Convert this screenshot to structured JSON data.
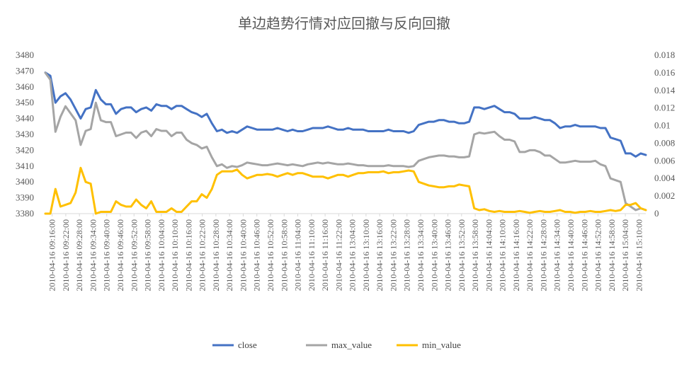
{
  "chart_data": {
    "type": "line",
    "title": "单边趋势行情对应回撤与反向回撤",
    "xlabel": "",
    "ylabel": "",
    "y_left": {
      "min": 3380,
      "max": 3480,
      "ticks": [
        "3380",
        "3390",
        "3400",
        "3410",
        "3420",
        "3430",
        "3440",
        "3450",
        "3460",
        "3470",
        "3480"
      ]
    },
    "y_right": {
      "min": 0,
      "max": 0.018,
      "ticks": [
        "0",
        "0.002",
        "0.004",
        "0.006",
        "0.008",
        "0.01",
        "0.012",
        "0.014",
        "0.016",
        "0.018"
      ]
    },
    "grid": false,
    "legend_position": "bottom",
    "x_tick_labels": [
      "2010-04-16 09:16:00",
      "2010-04-16 09:22:00",
      "2010-04-16 09:28:00",
      "2010-04-16 09:34:00",
      "2010-04-16 09:40:00",
      "2010-04-16 09:46:00",
      "2010-04-16 09:52:00",
      "2010-04-16 09:58:00",
      "2010-04-16 10:04:00",
      "2010-04-16 10:10:00",
      "2010-04-16 10:16:00",
      "2010-04-16 10:22:00",
      "2010-04-16 10:28:00",
      "2010-04-16 10:34:00",
      "2010-04-16 10:40:00",
      "2010-04-16 10:46:00",
      "2010-04-16 10:52:00",
      "2010-04-16 10:58:00",
      "2010-04-16 11:04:00",
      "2010-04-16 11:10:00",
      "2010-04-16 11:16:00",
      "2010-04-16 11:22:00",
      "2010-04-16 13:04:00",
      "2010-04-16 13:10:00",
      "2010-04-16 13:16:00",
      "2010-04-16 13:22:00",
      "2010-04-16 13:28:00",
      "2010-04-16 13:34:00",
      "2010-04-16 13:40:00",
      "2010-04-16 13:46:00",
      "2010-04-16 13:52:00",
      "2010-04-16 13:58:00",
      "2010-04-16 14:04:00",
      "2010-04-16 14:10:00",
      "2010-04-16 14:16:00",
      "2010-04-16 14:22:00",
      "2010-04-16 14:28:00",
      "2010-04-16 14:34:00",
      "2010-04-16 14:40:00",
      "2010-04-16 14:46:00",
      "2010-04-16 14:52:00",
      "2010-04-16 14:58:00",
      "2010-04-16 15:04:00",
      "2010-04-16 15:10:00"
    ],
    "series": [
      {
        "name": "close",
        "axis": "left",
        "color": "#4472C4",
        "values": [
          3469,
          3467,
          3450,
          3454,
          3456,
          3452,
          3446,
          3440,
          3446,
          3447,
          3458,
          3452,
          3449,
          3449,
          3443,
          3446,
          3447,
          3447,
          3444,
          3446,
          3447,
          3445,
          3449,
          3448,
          3448,
          3446,
          3448,
          3448,
          3446,
          3444,
          3443,
          3441,
          3443,
          3437,
          3432,
          3433,
          3431,
          3432,
          3431,
          3433,
          3435,
          3434,
          3433,
          3433,
          3433,
          3433,
          3434,
          3433,
          3432,
          3433,
          3432,
          3432,
          3433,
          3434,
          3434,
          3434,
          3435,
          3434,
          3433,
          3433,
          3434,
          3433,
          3433,
          3433,
          3432,
          3432,
          3432,
          3432,
          3433,
          3432,
          3432,
          3432,
          3431,
          3432,
          3436,
          3437,
          3438,
          3438,
          3439,
          3439,
          3438,
          3438,
          3437,
          3437,
          3438,
          3447,
          3447,
          3446,
          3447,
          3448,
          3446,
          3444,
          3444,
          3443,
          3440,
          3440,
          3440,
          3441,
          3440,
          3439,
          3439,
          3437,
          3434,
          3435,
          3435,
          3436,
          3435,
          3435,
          3435,
          3435,
          3434,
          3434,
          3428,
          3427,
          3426,
          3418,
          3418,
          3416,
          3418,
          3417
        ]
      },
      {
        "name": "max_value",
        "axis": "right",
        "color": "#A5A5A5",
        "values": [
          0.016,
          0.0152,
          0.0093,
          0.011,
          0.0122,
          0.0114,
          0.0106,
          0.0078,
          0.0094,
          0.0096,
          0.0126,
          0.0106,
          0.0104,
          0.0104,
          0.0088,
          0.009,
          0.0092,
          0.0092,
          0.0086,
          0.0092,
          0.0094,
          0.0088,
          0.0096,
          0.0094,
          0.0094,
          0.0088,
          0.0092,
          0.0092,
          0.0084,
          0.008,
          0.0078,
          0.0074,
          0.0076,
          0.0064,
          0.0054,
          0.0056,
          0.0052,
          0.0054,
          0.0053,
          0.0055,
          0.0058,
          0.0057,
          0.0056,
          0.0055,
          0.0055,
          0.0056,
          0.0057,
          0.0056,
          0.0055,
          0.0056,
          0.0055,
          0.0054,
          0.0056,
          0.0057,
          0.0058,
          0.0057,
          0.0058,
          0.0057,
          0.0056,
          0.0056,
          0.0057,
          0.0056,
          0.0055,
          0.0055,
          0.0054,
          0.0054,
          0.0054,
          0.0054,
          0.0055,
          0.0054,
          0.0054,
          0.0054,
          0.0053,
          0.0054,
          0.006,
          0.0062,
          0.0064,
          0.0065,
          0.0066,
          0.0066,
          0.0065,
          0.0065,
          0.0064,
          0.0064,
          0.0065,
          0.009,
          0.0092,
          0.0091,
          0.0092,
          0.0093,
          0.0088,
          0.0084,
          0.0084,
          0.0082,
          0.007,
          0.007,
          0.0072,
          0.0072,
          0.007,
          0.0066,
          0.0066,
          0.0062,
          0.0058,
          0.0058,
          0.0059,
          0.006,
          0.0059,
          0.0059,
          0.0059,
          0.006,
          0.0056,
          0.0054,
          0.004,
          0.0038,
          0.0036,
          0.0012,
          0.0008,
          0.0004,
          0.0006,
          0.0004
        ]
      },
      {
        "name": "min_value",
        "axis": "right",
        "color": "#FFC000",
        "values": [
          0.0,
          0.0,
          0.0028,
          0.0008,
          0.001,
          0.0012,
          0.0024,
          0.0052,
          0.0036,
          0.0034,
          0.0,
          0.0002,
          0.0002,
          0.0002,
          0.0014,
          0.001,
          0.0008,
          0.0008,
          0.0016,
          0.001,
          0.0006,
          0.0014,
          0.0002,
          0.0002,
          0.0002,
          0.0006,
          0.0002,
          0.0002,
          0.0008,
          0.0014,
          0.0014,
          0.0022,
          0.0018,
          0.0028,
          0.0044,
          0.0048,
          0.0048,
          0.0048,
          0.005,
          0.0044,
          0.004,
          0.0042,
          0.0044,
          0.0044,
          0.0045,
          0.0044,
          0.0042,
          0.0044,
          0.0046,
          0.0044,
          0.0046,
          0.0046,
          0.0044,
          0.0042,
          0.0042,
          0.0042,
          0.004,
          0.0042,
          0.0044,
          0.0044,
          0.0042,
          0.0044,
          0.0046,
          0.0046,
          0.0047,
          0.0047,
          0.0047,
          0.0048,
          0.0046,
          0.0047,
          0.0047,
          0.0048,
          0.0049,
          0.0048,
          0.0036,
          0.0034,
          0.0032,
          0.0031,
          0.003,
          0.003,
          0.0031,
          0.0031,
          0.0033,
          0.0032,
          0.0031,
          0.0006,
          0.0004,
          0.0005,
          0.0003,
          0.0002,
          0.0003,
          0.0002,
          0.0002,
          0.0002,
          0.0003,
          0.0002,
          0.0001,
          0.0002,
          0.0003,
          0.0002,
          0.0002,
          0.0003,
          0.0004,
          0.0002,
          0.0002,
          0.0001,
          0.0002,
          0.0002,
          0.0003,
          0.0002,
          0.0002,
          0.0003,
          0.0004,
          0.0003,
          0.0004,
          0.001,
          0.001,
          0.0012,
          0.0006,
          0.0004
        ]
      }
    ]
  }
}
